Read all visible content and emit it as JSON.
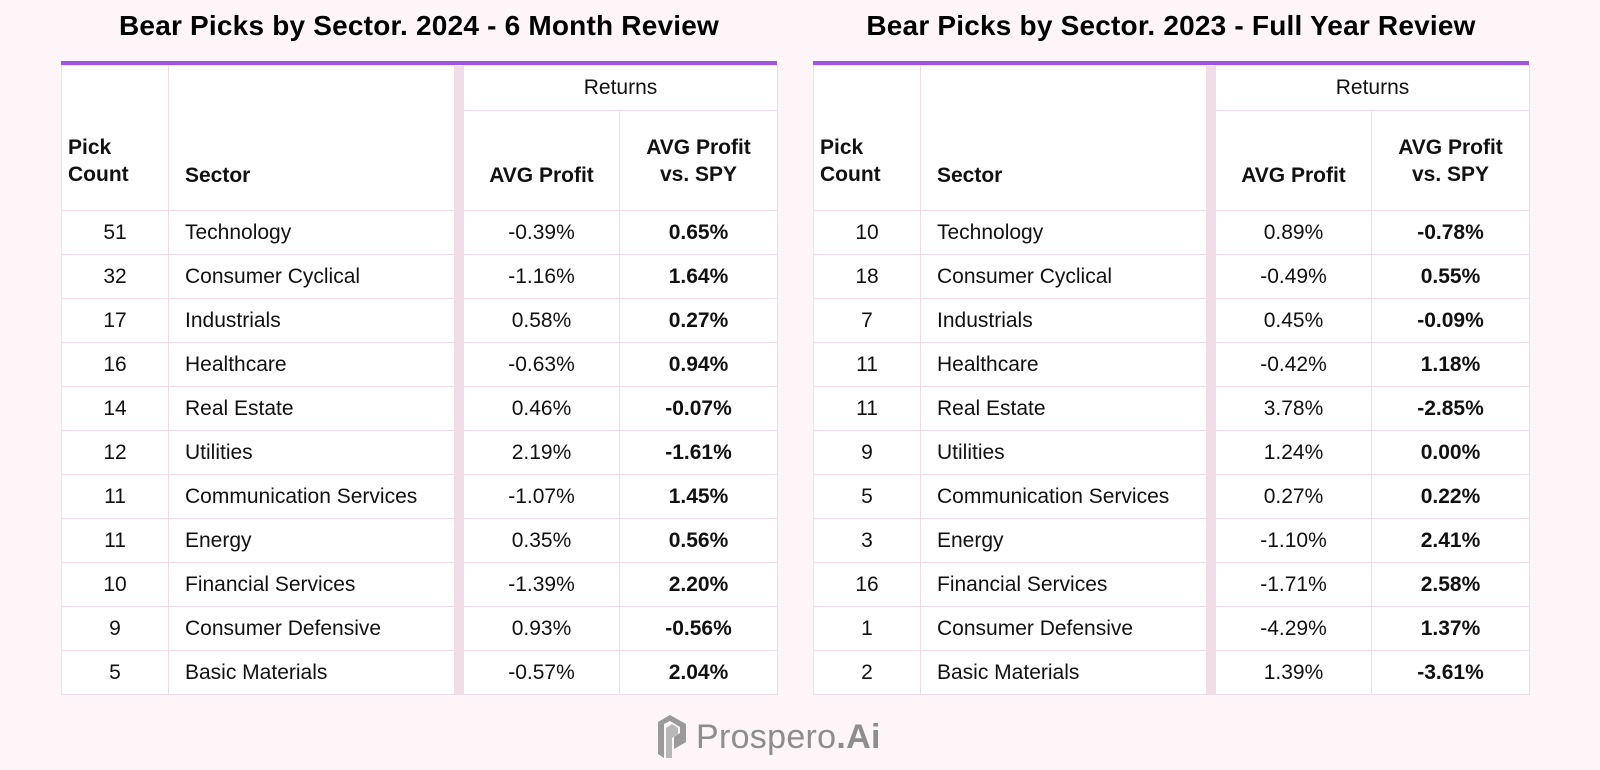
{
  "left": {
    "title": "Bear Picks by Sector.  2024 - 6 Month Review",
    "headers": {
      "returns": "Returns",
      "count_line1": "Pick",
      "count_line2": "Count",
      "sector": "Sector",
      "avg_profit": "AVG Profit",
      "vs_line1": "AVG Profit",
      "vs_line2": "vs. SPY"
    },
    "rows": [
      {
        "count": "51",
        "sector": "Technology",
        "avg": "-0.39%",
        "vs": "0.65%"
      },
      {
        "count": "32",
        "sector": "Consumer Cyclical",
        "avg": "-1.16%",
        "vs": "1.64%"
      },
      {
        "count": "17",
        "sector": "Industrials",
        "avg": "0.58%",
        "vs": "0.27%"
      },
      {
        "count": "16",
        "sector": "Healthcare",
        "avg": "-0.63%",
        "vs": "0.94%"
      },
      {
        "count": "14",
        "sector": "Real Estate",
        "avg": "0.46%",
        "vs": "-0.07%"
      },
      {
        "count": "12",
        "sector": "Utilities",
        "avg": "2.19%",
        "vs": "-1.61%"
      },
      {
        "count": "11",
        "sector": "Communication Services",
        "avg": "-1.07%",
        "vs": "1.45%"
      },
      {
        "count": "11",
        "sector": "Energy",
        "avg": "0.35%",
        "vs": "0.56%"
      },
      {
        "count": "10",
        "sector": "Financial Services",
        "avg": "-1.39%",
        "vs": "2.20%"
      },
      {
        "count": "9",
        "sector": "Consumer Defensive",
        "avg": "0.93%",
        "vs": "-0.56%"
      },
      {
        "count": "5",
        "sector": "Basic Materials",
        "avg": "-0.57%",
        "vs": "2.04%"
      }
    ]
  },
  "right": {
    "title": "Bear Picks by Sector.  2023 - Full Year Review",
    "headers": {
      "returns": "Returns",
      "count_line1": "Pick",
      "count_line2": "Count",
      "sector": "Sector",
      "avg_profit": "AVG Profit",
      "vs_line1": "AVG Profit",
      "vs_line2": "vs. SPY"
    },
    "rows": [
      {
        "count": "10",
        "sector": "Technology",
        "avg": "0.89%",
        "vs": "-0.78%"
      },
      {
        "count": "18",
        "sector": "Consumer Cyclical",
        "avg": "-0.49%",
        "vs": "0.55%"
      },
      {
        "count": "7",
        "sector": "Industrials",
        "avg": "0.45%",
        "vs": "-0.09%"
      },
      {
        "count": "11",
        "sector": "Healthcare",
        "avg": "-0.42%",
        "vs": "1.18%"
      },
      {
        "count": "11",
        "sector": "Real Estate",
        "avg": "3.78%",
        "vs": "-2.85%"
      },
      {
        "count": "9",
        "sector": "Utilities",
        "avg": "1.24%",
        "vs": "0.00%"
      },
      {
        "count": "5",
        "sector": "Communication Services",
        "avg": "0.27%",
        "vs": "0.22%"
      },
      {
        "count": "3",
        "sector": "Energy",
        "avg": "-1.10%",
        "vs": "2.41%"
      },
      {
        "count": "16",
        "sector": "Financial Services",
        "avg": "-1.71%",
        "vs": "2.58%"
      },
      {
        "count": "1",
        "sector": "Consumer Defensive",
        "avg": "-4.29%",
        "vs": "1.37%"
      },
      {
        "count": "2",
        "sector": "Basic Materials",
        "avg": "1.39%",
        "vs": "-3.61%"
      }
    ]
  },
  "logo": {
    "icon": "prospero-logo-icon",
    "name": "Prospero",
    "suffix": ".Ai"
  },
  "colors": {
    "background": "#fef5f9",
    "accent": "#9b57e0",
    "gap": "#f2dcea",
    "logo": "#8d8d8d"
  }
}
